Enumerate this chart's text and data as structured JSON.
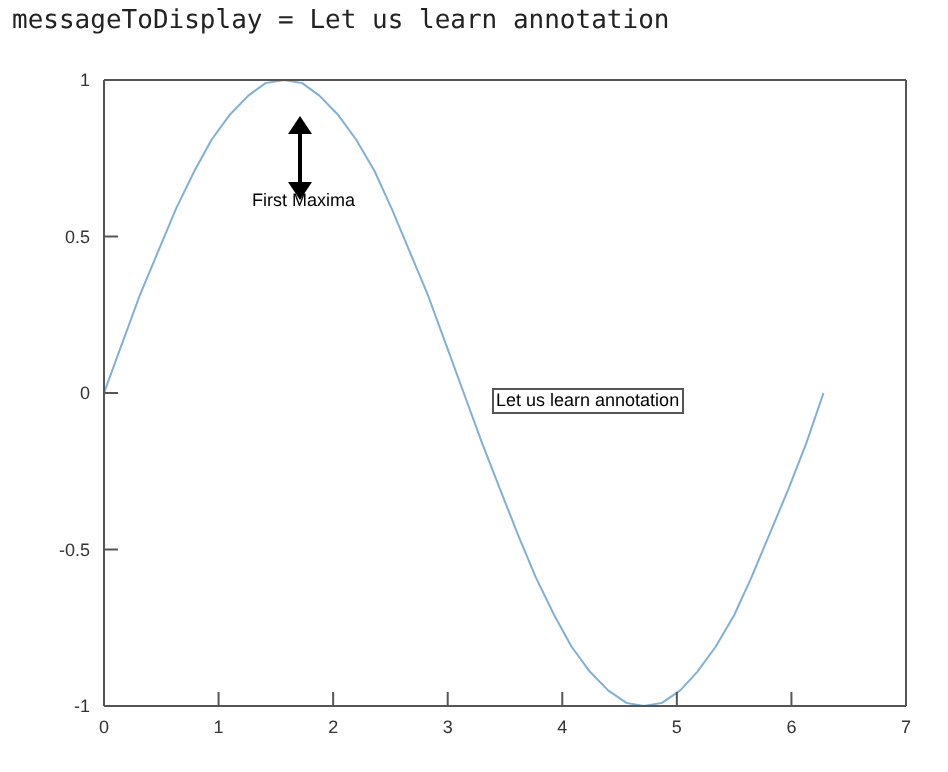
{
  "chart_data": {
    "type": "line",
    "title": "messageToDisplay = Let us learn annotation",
    "x": [
      0,
      0.16,
      0.31,
      0.47,
      0.63,
      0.79,
      0.94,
      1.1,
      1.26,
      1.41,
      1.57,
      1.73,
      1.88,
      2.04,
      2.2,
      2.36,
      2.51,
      2.67,
      2.83,
      2.98,
      3.14,
      3.3,
      3.46,
      3.61,
      3.77,
      3.93,
      4.08,
      4.24,
      4.4,
      4.56,
      4.71,
      4.87,
      5.03,
      5.18,
      5.34,
      5.5,
      5.65,
      5.81,
      5.97,
      6.13,
      6.28
    ],
    "series": [
      {
        "color": "#7fb0d8",
        "values": [
          0,
          0.16,
          0.31,
          0.45,
          0.59,
          0.71,
          0.81,
          0.89,
          0.95,
          0.99,
          1,
          0.99,
          0.95,
          0.89,
          0.81,
          0.71,
          0.59,
          0.45,
          0.31,
          0.16,
          0,
          -0.16,
          -0.31,
          -0.45,
          -0.59,
          -0.71,
          -0.81,
          -0.89,
          -0.95,
          -0.99,
          -1,
          -0.99,
          -0.95,
          -0.89,
          -0.81,
          -0.71,
          -0.59,
          -0.45,
          -0.31,
          -0.16,
          0
        ]
      }
    ],
    "xlim": [
      0,
      7
    ],
    "xticks": [
      0,
      1,
      2,
      3,
      4,
      5,
      6,
      7
    ],
    "ylim": [
      -1,
      1
    ],
    "yticks": [
      -1,
      -0.5,
      0,
      0.5,
      1
    ],
    "annotations": [
      "First Maxima",
      "Let us learn annotation"
    ],
    "grid": false,
    "legend": false,
    "marker": "none",
    "line_style": "solid"
  }
}
